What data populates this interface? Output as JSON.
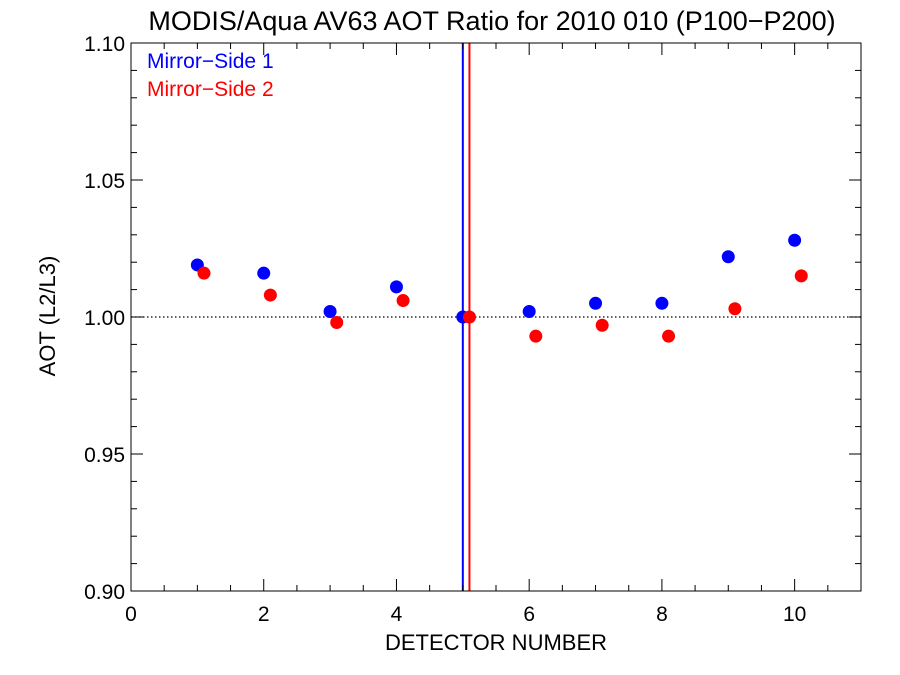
{
  "chart_data": {
    "type": "scatter",
    "title": "MODIS/Aqua AV63 AOT Ratio for 2010 010 (P100−P200)",
    "xlabel": "DETECTOR NUMBER",
    "ylabel": "AOT (L2/L3)",
    "xlim": [
      0,
      11
    ],
    "ylim": [
      0.9,
      1.1
    ],
    "x_ticks": [
      0,
      2,
      4,
      6,
      8,
      10
    ],
    "x_tick_labels": [
      "0",
      "2",
      "4",
      "6",
      "8",
      "10"
    ],
    "y_ticks": [
      0.9,
      0.95,
      1.0,
      1.05,
      1.1
    ],
    "y_tick_labels": [
      "0.90",
      "0.95",
      "1.00",
      "1.05",
      "1.10"
    ],
    "reference_line_y": 1.0,
    "legend_position": "top-left",
    "series": [
      {
        "name": "Mirror−Side 1",
        "color": "#0000ff",
        "x": [
          1,
          2,
          3,
          4,
          5,
          6,
          7,
          8,
          9,
          10
        ],
        "y": [
          1.019,
          1.016,
          1.002,
          1.011,
          1.0,
          1.002,
          1.005,
          1.005,
          1.022,
          1.028
        ],
        "vline_x": 5.0
      },
      {
        "name": "Mirror−Side 2",
        "color": "#ff0000",
        "x": [
          1.1,
          2.1,
          3.1,
          4.1,
          5.1,
          6.1,
          7.1,
          8.1,
          9.1,
          10.1
        ],
        "y": [
          1.016,
          1.008,
          0.998,
          1.006,
          1.0,
          0.993,
          0.997,
          0.993,
          1.003,
          1.015
        ],
        "vline_x": 5.1
      }
    ]
  }
}
